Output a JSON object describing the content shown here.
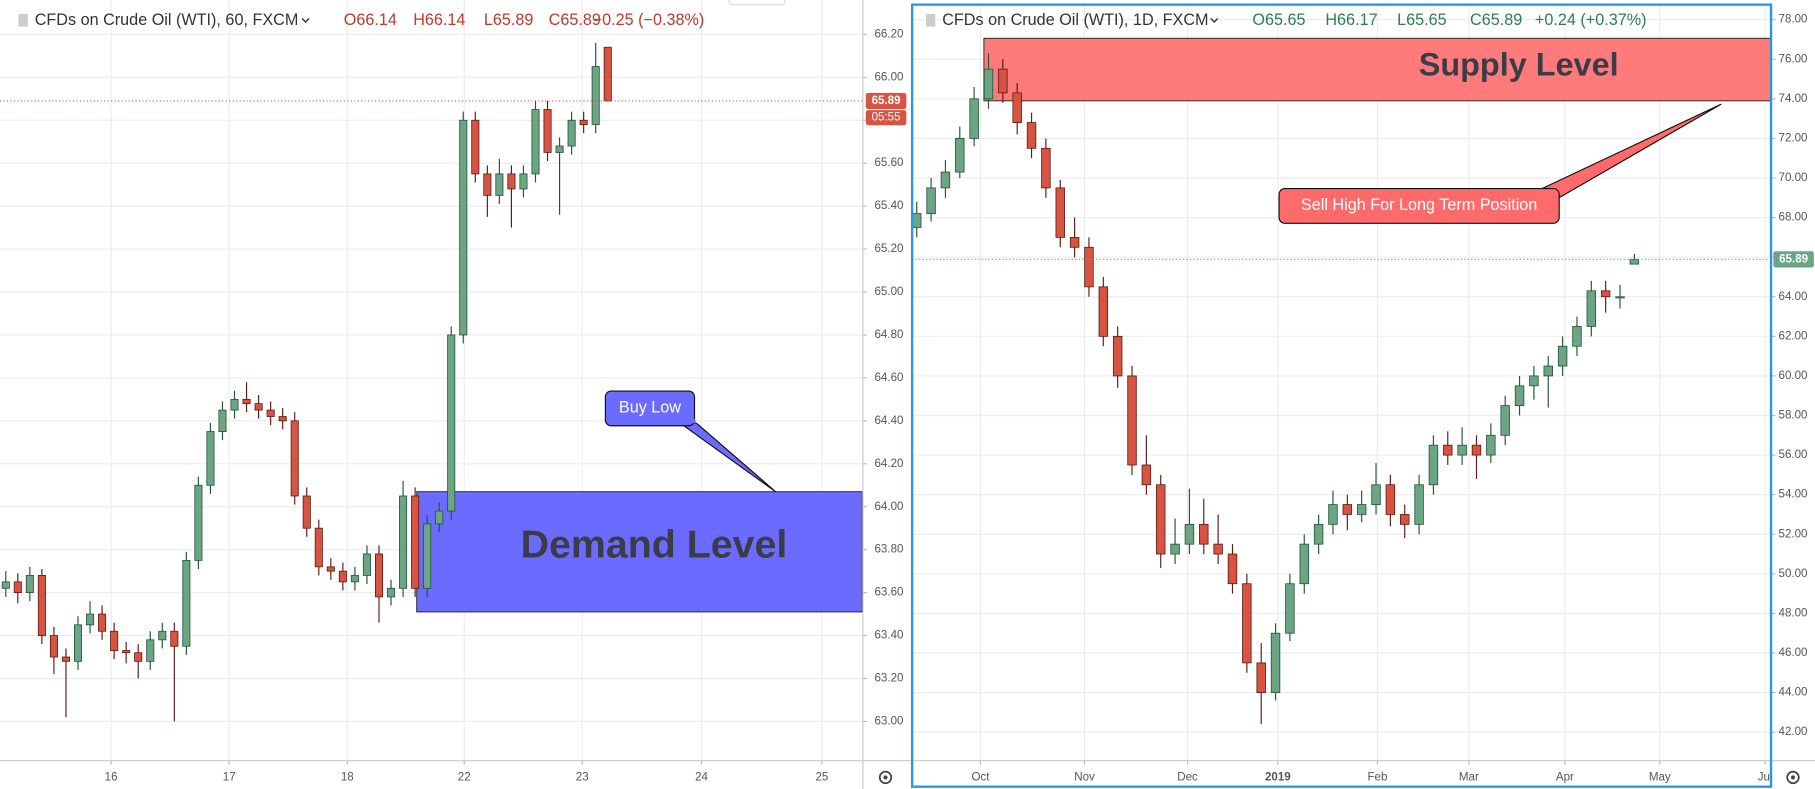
{
  "chart_data": [
    {
      "type": "candlestick",
      "title": "CFDs on Crude Oil (WTI), 60, FXCM",
      "ohlc_labels": [
        {
          "value": 66.14,
          "label": "O66.14"
        },
        {
          "value": 66.14,
          "label": "H66.14"
        },
        {
          "value": 65.89,
          "label": "L65.89"
        },
        {
          "value": 65.89,
          "label": "C65.89"
        }
      ],
      "change_label": "−0.25 (−0.38%)",
      "last_price_label": {
        "value": 65.89,
        "label": "65.89"
      },
      "countdown": "05:55",
      "up_color": "#6ba583",
      "down_color": "#d75442",
      "price_line_color": "#d75442",
      "xlim": [
        -0.48,
        71.15
      ],
      "xticks": [
        {
          "value": 8.75,
          "label": "16"
        },
        {
          "value": 18.56,
          "label": "17"
        },
        {
          "value": 28.37,
          "label": "18"
        },
        {
          "value": 38.08,
          "label": "22"
        },
        {
          "value": 47.88,
          "label": "23"
        },
        {
          "value": 57.79,
          "label": "24"
        },
        {
          "value": 67.79,
          "label": "25"
        }
      ],
      "ylim": [
        62.82,
        66.36
      ],
      "yticks": [
        {
          "value": 63.0,
          "label": "63.00"
        },
        {
          "value": 63.2,
          "label": "63.20"
        },
        {
          "value": 63.4,
          "label": "63.40"
        },
        {
          "value": 63.6,
          "label": "63.60"
        },
        {
          "value": 63.8,
          "label": "63.80"
        },
        {
          "value": 64.0,
          "label": "64.00"
        },
        {
          "value": 64.2,
          "label": "64.20"
        },
        {
          "value": 64.4,
          "label": "64.40"
        },
        {
          "value": 64.6,
          "label": "64.60"
        },
        {
          "value": 64.8,
          "label": "64.80"
        },
        {
          "value": 65.0,
          "label": "65.00"
        },
        {
          "value": 65.2,
          "label": "65.20"
        },
        {
          "value": 65.4,
          "label": "65.40"
        },
        {
          "value": 65.6,
          "label": "65.60"
        },
        {
          "value": 65.8,
          "label": "65.80"
        },
        {
          "value": 66.0,
          "label": "66.00"
        },
        {
          "value": 66.2,
          "label": "66.20"
        }
      ],
      "grid": true,
      "zone": {
        "label": "Demand Level",
        "low": 63.51,
        "high": 64.07,
        "color": "#6b6bff"
      },
      "callout": {
        "label": "Buy Low",
        "color": "#6b6bff"
      },
      "candles": [
        [
          63.62,
          63.7,
          63.58,
          63.65
        ],
        [
          63.65,
          63.69,
          63.55,
          63.6
        ],
        [
          63.6,
          63.72,
          63.56,
          63.68
        ],
        [
          63.68,
          63.71,
          63.36,
          63.4
        ],
        [
          63.4,
          63.44,
          63.22,
          63.3
        ],
        [
          63.3,
          63.34,
          63.02,
          63.28
        ],
        [
          63.28,
          63.49,
          63.24,
          63.45
        ],
        [
          63.45,
          63.56,
          63.41,
          63.5
        ],
        [
          63.5,
          63.54,
          63.38,
          63.42
        ],
        [
          63.42,
          63.46,
          63.29,
          63.33
        ],
        [
          63.33,
          63.37,
          63.27,
          63.32
        ],
        [
          63.32,
          63.36,
          63.2,
          63.28
        ],
        [
          63.28,
          63.42,
          63.24,
          63.38
        ],
        [
          63.38,
          63.46,
          63.34,
          63.42
        ],
        [
          63.42,
          63.46,
          63.0,
          63.35
        ],
        [
          63.35,
          63.79,
          63.31,
          63.75
        ],
        [
          63.75,
          64.14,
          63.71,
          64.1
        ],
        [
          64.1,
          64.39,
          64.06,
          64.35
        ],
        [
          64.35,
          64.49,
          64.31,
          64.45
        ],
        [
          64.45,
          64.54,
          64.41,
          64.5
        ],
        [
          64.5,
          64.58,
          64.44,
          64.48
        ],
        [
          64.48,
          64.52,
          64.41,
          64.45
        ],
        [
          64.45,
          64.49,
          64.38,
          64.42
        ],
        [
          64.42,
          64.46,
          64.36,
          64.4
        ],
        [
          64.4,
          64.44,
          64.01,
          64.05
        ],
        [
          64.05,
          64.09,
          63.86,
          63.9
        ],
        [
          63.9,
          63.94,
          63.68,
          63.72
        ],
        [
          63.72,
          63.76,
          63.66,
          63.7
        ],
        [
          63.7,
          63.74,
          63.61,
          63.65
        ],
        [
          63.65,
          63.72,
          63.61,
          63.68
        ],
        [
          63.68,
          63.82,
          63.64,
          63.78
        ],
        [
          63.78,
          63.82,
          63.46,
          63.58
        ],
        [
          63.58,
          63.66,
          63.54,
          63.62
        ],
        [
          63.62,
          64.12,
          63.58,
          64.05
        ],
        [
          64.05,
          64.09,
          63.58,
          63.62
        ],
        [
          63.62,
          63.96,
          63.58,
          63.92
        ],
        [
          63.92,
          64.02,
          63.88,
          63.98
        ],
        [
          63.98,
          64.84,
          63.94,
          64.8
        ],
        [
          64.8,
          65.84,
          64.76,
          65.8
        ],
        [
          65.8,
          65.84,
          65.51,
          65.55
        ],
        [
          65.55,
          65.59,
          65.35,
          65.45
        ],
        [
          65.45,
          65.62,
          65.41,
          65.55
        ],
        [
          65.55,
          65.59,
          65.3,
          65.48
        ],
        [
          65.48,
          65.59,
          65.44,
          65.55
        ],
        [
          65.55,
          65.89,
          65.51,
          65.85
        ],
        [
          65.85,
          65.89,
          65.61,
          65.65
        ],
        [
          65.65,
          65.72,
          65.36,
          65.68
        ],
        [
          65.68,
          65.84,
          65.64,
          65.8
        ],
        [
          65.8,
          65.84,
          65.74,
          65.78
        ],
        [
          65.78,
          66.16,
          65.74,
          66.05
        ],
        [
          66.14,
          66.14,
          65.89,
          65.89
        ]
      ]
    },
    {
      "type": "candlestick",
      "title": "CFDs on Crude Oil (WTI), 1D, FXCM",
      "ohlc_labels": [
        {
          "value": 65.65,
          "label": "O65.65"
        },
        {
          "value": 66.17,
          "label": "H66.17"
        },
        {
          "value": 65.65,
          "label": "L65.65"
        },
        {
          "value": 65.89,
          "label": "C65.89"
        }
      ],
      "change_label": "+0.24 (+0.37%)",
      "last_price_label": {
        "value": 65.89,
        "label": "65.89"
      },
      "up_color": "#6ba583",
      "down_color": "#d75442",
      "price_line_color": "#6ba583",
      "xlim": [
        -0.32,
        59.52
      ],
      "xticks": [
        {
          "value": 4.44,
          "label": "Oct"
        },
        {
          "value": 11.69,
          "label": "Nov"
        },
        {
          "value": 18.87,
          "label": "Dec"
        },
        {
          "value": 25.16,
          "label": "2019"
        },
        {
          "value": 32.1,
          "label": "Feb"
        },
        {
          "value": 38.47,
          "label": "Mar"
        },
        {
          "value": 45.16,
          "label": "Apr"
        },
        {
          "value": 51.77,
          "label": "May"
        },
        {
          "value": 59.11,
          "label": "Jul"
        }
      ],
      "ylim": [
        40.59,
        78.76
      ],
      "yticks": [
        {
          "value": 42,
          "label": "42.00"
        },
        {
          "value": 44,
          "label": "44.00"
        },
        {
          "value": 46,
          "label": "46.00"
        },
        {
          "value": 48,
          "label": "48.00"
        },
        {
          "value": 50,
          "label": "50.00"
        },
        {
          "value": 52,
          "label": "52.00"
        },
        {
          "value": 54,
          "label": "54.00"
        },
        {
          "value": 56,
          "label": "56.00"
        },
        {
          "value": 58,
          "label": "58.00"
        },
        {
          "value": 60,
          "label": "60.00"
        },
        {
          "value": 62,
          "label": "62.00"
        },
        {
          "value": 64,
          "label": "64.00"
        },
        {
          "value": 66,
          "label": "66.00"
        },
        {
          "value": 68,
          "label": "68.00"
        },
        {
          "value": 70,
          "label": "70.00"
        },
        {
          "value": 72,
          "label": "72.00"
        },
        {
          "value": 74,
          "label": "74.00"
        },
        {
          "value": 76,
          "label": "76.00"
        },
        {
          "value": 78,
          "label": "78.00"
        }
      ],
      "grid": true,
      "zone": {
        "label": "Supply Level",
        "low": 73.9,
        "high": 77.06,
        "color": "#ff7b7b"
      },
      "callout": {
        "label": "Sell High For Long Term Position",
        "color": "#ff6b6b"
      },
      "candles": [
        [
          67.5,
          68.8,
          67.0,
          68.2
        ],
        [
          68.2,
          70.0,
          67.8,
          69.5
        ],
        [
          69.5,
          70.9,
          69.0,
          70.3
        ],
        [
          70.3,
          72.6,
          70.0,
          72.0
        ],
        [
          72.0,
          74.6,
          71.6,
          74.0
        ],
        [
          74.0,
          76.3,
          73.5,
          75.5
        ],
        [
          75.5,
          76.0,
          73.8,
          74.3
        ],
        [
          74.3,
          74.8,
          72.2,
          72.8
        ],
        [
          72.8,
          73.3,
          71.0,
          71.5
        ],
        [
          71.5,
          72.0,
          69.0,
          69.5
        ],
        [
          69.5,
          69.9,
          66.5,
          67.0
        ],
        [
          67.0,
          68.0,
          66.0,
          66.5
        ],
        [
          66.5,
          67.0,
          64.0,
          64.5
        ],
        [
          64.5,
          65.0,
          61.5,
          62.0
        ],
        [
          62.0,
          62.5,
          59.4,
          60.0
        ],
        [
          60.0,
          60.5,
          55.0,
          55.5
        ],
        [
          55.5,
          57.0,
          54.0,
          54.5
        ],
        [
          54.5,
          55.0,
          50.3,
          51.0
        ],
        [
          51.0,
          52.8,
          50.5,
          51.5
        ],
        [
          51.5,
          54.3,
          51.0,
          52.5
        ],
        [
          52.5,
          53.8,
          51.0,
          51.5
        ],
        [
          51.5,
          53.0,
          50.5,
          51.0
        ],
        [
          51.0,
          51.5,
          49.0,
          49.5
        ],
        [
          49.5,
          50.0,
          45.0,
          45.5
        ],
        [
          45.5,
          46.5,
          42.4,
          44.0
        ],
        [
          44.0,
          47.5,
          43.6,
          47.0
        ],
        [
          47.0,
          50.0,
          46.6,
          49.5
        ],
        [
          49.5,
          52.0,
          49.0,
          51.5
        ],
        [
          51.5,
          53.0,
          51.0,
          52.5
        ],
        [
          52.5,
          54.2,
          52.0,
          53.5
        ],
        [
          53.5,
          54.0,
          52.2,
          53.0
        ],
        [
          53.0,
          54.2,
          52.6,
          53.5
        ],
        [
          53.5,
          55.6,
          53.0,
          54.5
        ],
        [
          54.5,
          55.0,
          52.4,
          53.0
        ],
        [
          53.0,
          53.5,
          51.8,
          52.5
        ],
        [
          52.5,
          55.0,
          52.0,
          54.5
        ],
        [
          54.5,
          57.0,
          54.0,
          56.5
        ],
        [
          56.5,
          57.2,
          55.5,
          56.0
        ],
        [
          56.0,
          57.4,
          55.5,
          56.5
        ],
        [
          56.5,
          57.0,
          54.8,
          56.0
        ],
        [
          56.0,
          57.6,
          55.6,
          57.0
        ],
        [
          57.0,
          59.0,
          56.5,
          58.5
        ],
        [
          58.5,
          60.0,
          58.0,
          59.5
        ],
        [
          59.5,
          60.5,
          58.8,
          60.0
        ],
        [
          60.0,
          61.0,
          58.4,
          60.5
        ],
        [
          60.5,
          62.0,
          60.0,
          61.5
        ],
        [
          61.5,
          63.0,
          61.0,
          62.5
        ],
        [
          62.5,
          64.8,
          62.0,
          64.3
        ],
        [
          64.3,
          64.8,
          63.2,
          64.0
        ],
        [
          64.0,
          64.6,
          63.4,
          64.0
        ],
        [
          65.65,
          66.17,
          65.65,
          65.89
        ]
      ]
    }
  ]
}
